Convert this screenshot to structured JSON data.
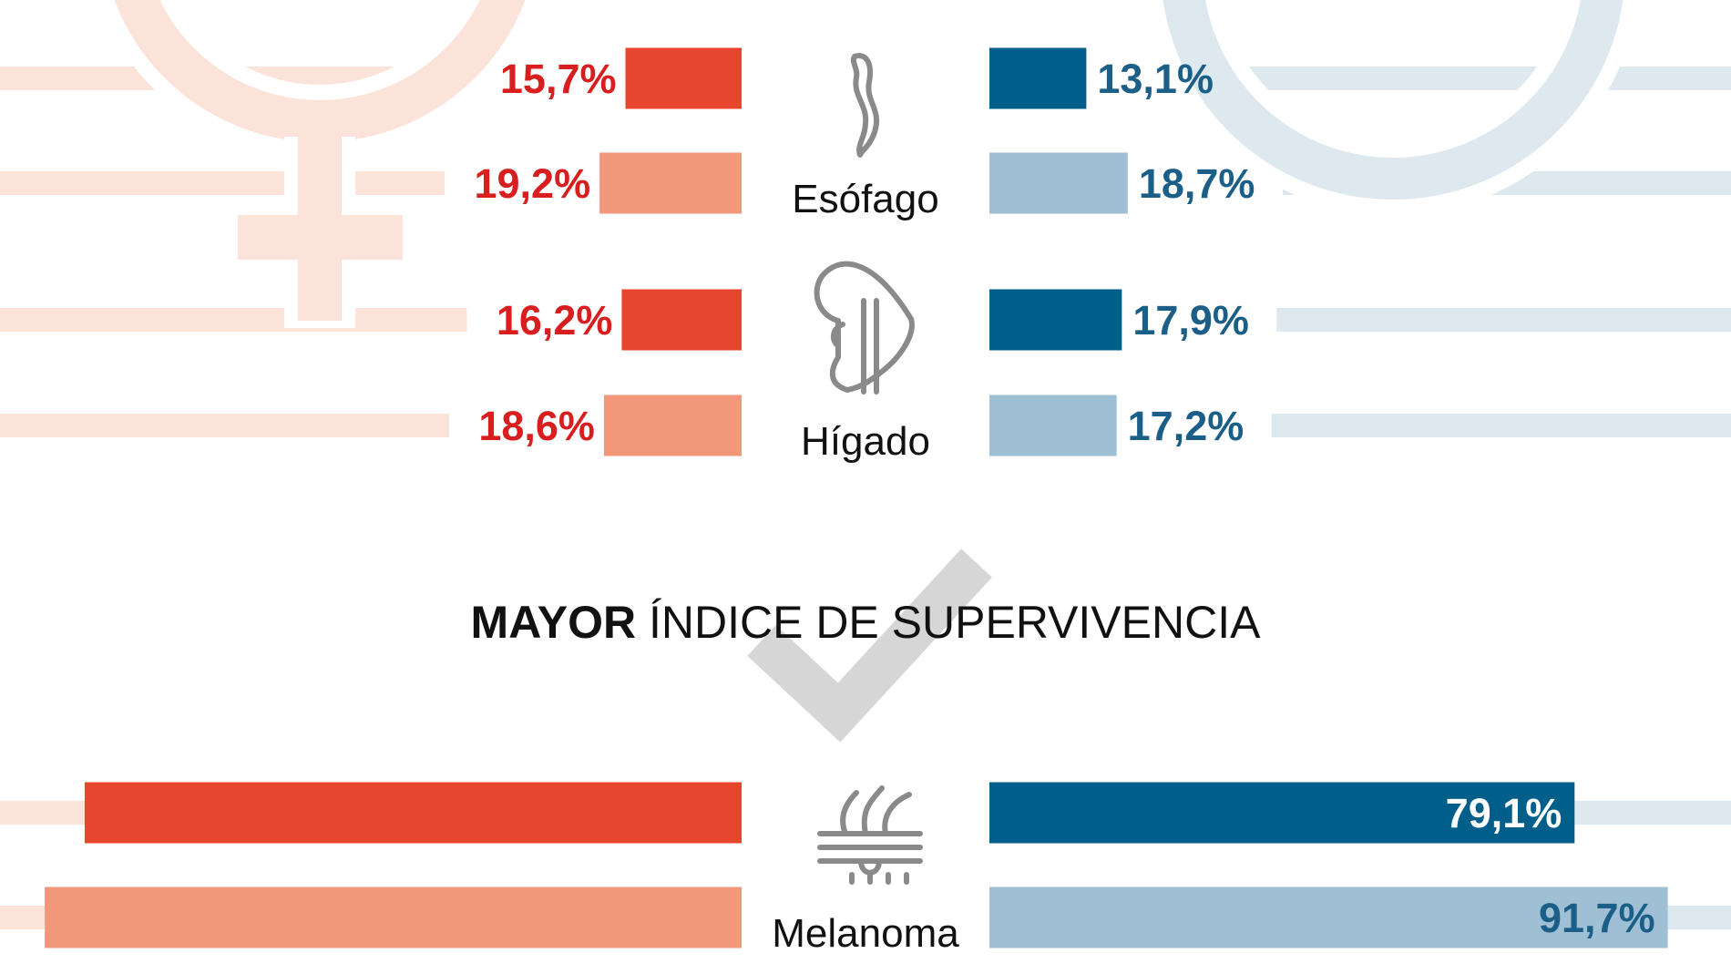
{
  "chart_data": {
    "type": "bar",
    "orientation": "horizontal-diverging",
    "section_title_bold": "MAYOR",
    "section_title_rest": " ÍNDICE DE SUPERVIVENCIA",
    "groups": [
      {
        "category": "Esófago",
        "icon": "esophagus-icon",
        "left": [
          15.7,
          19.2
        ],
        "right": [
          13.1,
          18.7
        ],
        "left_labels": [
          "15,7%",
          "19,2%"
        ],
        "right_labels": [
          "13,1%",
          "18,7%"
        ]
      },
      {
        "category": "Hígado",
        "icon": "liver-icon",
        "left": [
          16.2,
          18.6
        ],
        "right": [
          17.9,
          17.2
        ],
        "left_labels": [
          "16,2%",
          "18,6%"
        ],
        "right_labels": [
          "17,9%",
          "17,2%"
        ]
      },
      {
        "category": "Melanoma",
        "icon": "skin-hair-follicle-icon",
        "left": [
          88.8,
          94.2
        ],
        "right": [
          79.1,
          91.7
        ],
        "left_labels": [
          "",
          ""
        ],
        "right_labels": [
          "79,1%",
          "91,7%"
        ]
      }
    ],
    "left_side_symbol": "female-symbol",
    "right_side_symbol": "male-symbol",
    "colors": {
      "left_dark": "#e8452e",
      "left_light": "#f2977a",
      "right_dark": "#005f8a",
      "right_light": "#9ebfd4",
      "left_text": "#d81e1e",
      "right_text": "#1b5f88",
      "left_bg": "#fbe3da",
      "right_bg": "#dde8ef",
      "check": "#cfcfcf",
      "icon": "#8a8a8a"
    }
  }
}
